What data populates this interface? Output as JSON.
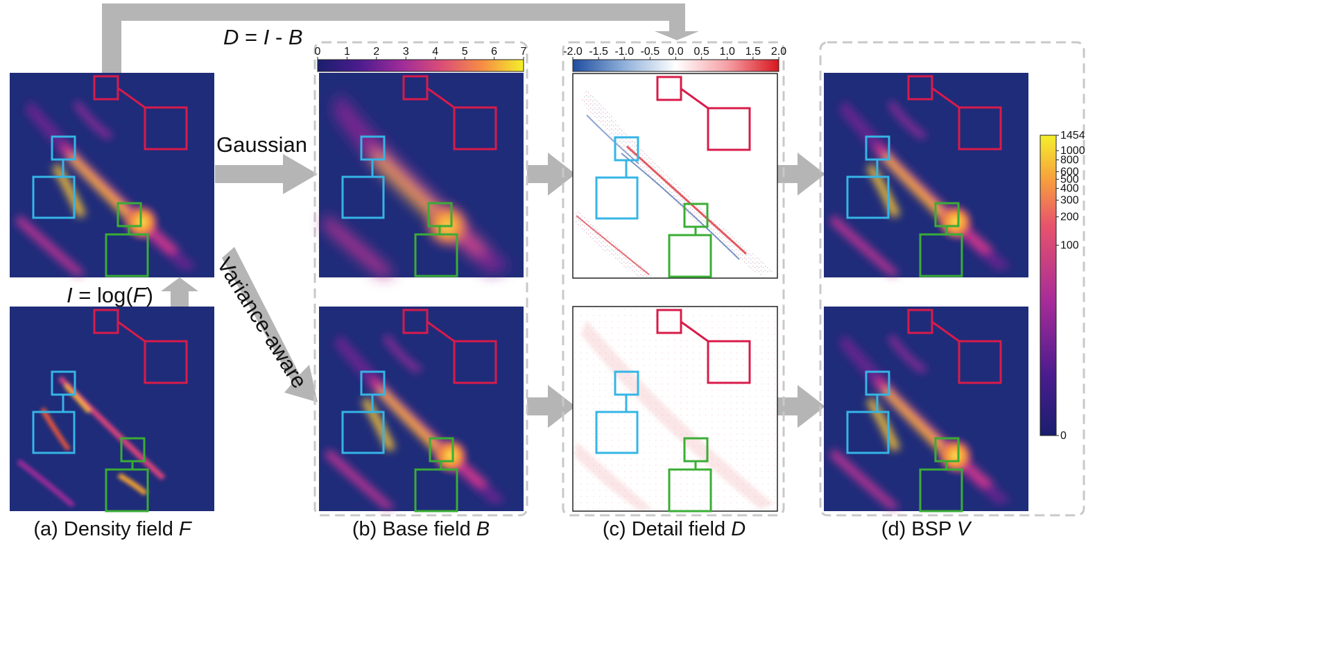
{
  "equations": {
    "difference": {
      "lhs": "D",
      "eq": " = ",
      "a": "I",
      "minus": " - ",
      "b": "B"
    },
    "log": {
      "lhs": "I",
      "eq": " = log(",
      "arg": "F",
      "close": ")"
    }
  },
  "arrows": {
    "gaussian_label": "Gaussian",
    "variance_label": "Variance-aware"
  },
  "captions": {
    "a": {
      "text": "(a) Density field ",
      "var": "F"
    },
    "b": {
      "text": "(b) Base field ",
      "var": "B"
    },
    "c": {
      "text": "(c) Detail field ",
      "var": "D"
    },
    "d": {
      "text": "(d) BSP ",
      "var": "V"
    }
  },
  "colorbars": {
    "base": {
      "ticks": [
        "0",
        "1",
        "2",
        "3",
        "4",
        "5",
        "6",
        "7"
      ],
      "min": 0,
      "max": 7,
      "colormap": "plasma"
    },
    "detail": {
      "ticks": [
        "-2.0",
        "-1.5",
        "-1.0",
        "-0.5",
        "0.0",
        "0.5",
        "1.0",
        "1.5",
        "2.0"
      ],
      "min": -2.0,
      "max": 2.0,
      "colormap": "diverging-blue-white-red"
    },
    "bsp": {
      "ticks": [
        "1454",
        "1000",
        "800",
        "600",
        "500",
        "400",
        "300",
        "200",
        "100",
        "0"
      ],
      "min": 0,
      "max": 1454,
      "scale": "log"
    }
  },
  "colors": {
    "background_panel": "#1f2c7a",
    "arrow_gray": "#b5b5b5",
    "dashed_border": "#c8c8c8",
    "box_red": "#d81b4a",
    "box_blue": "#35b5e6",
    "box_green": "#3aad35",
    "detail_red": "#d81b2a",
    "detail_blue": "#1f4da0"
  }
}
